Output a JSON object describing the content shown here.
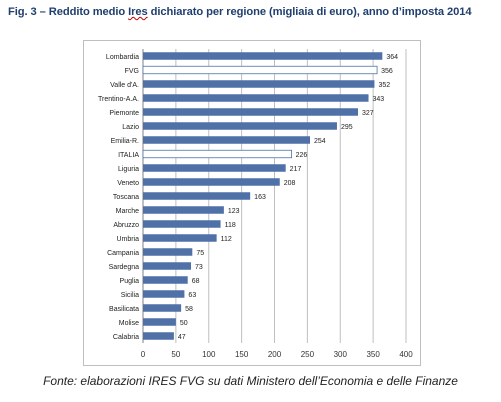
{
  "title": {
    "prefix": "Fig. 3 – Reddito medio ",
    "ires_word": "Ires",
    "suffix": " dichiarato per regione (migliaia di euro), anno d’imposta 2014"
  },
  "source_note": "Fonte: elaborazioni IRES FVG su dati Ministero dell’Economia e delle Finanze",
  "colors": {
    "bar_fill": "#4f71a8",
    "bar_highlight_fill": "#ffffff",
    "bar_highlight_stroke": "#4f71a8",
    "gridline": "#bfbfbf",
    "title": "#1f3f6e"
  },
  "chart_data": {
    "type": "bar",
    "orientation": "horizontal",
    "title": "Fig. 3 – Reddito medio Ires dichiarato per regione (migliaia di euro), anno d’imposta 2014",
    "xlabel": "",
    "ylabel": "",
    "xlim": [
      0,
      400
    ],
    "xticks": [
      0,
      50,
      100,
      150,
      200,
      250,
      300,
      350,
      400
    ],
    "grid": true,
    "legend": "none",
    "categories": [
      "Lombardia",
      "FVG",
      "Valle d'A.",
      "Trentino-A.A.",
      "Piemonte",
      "Lazio",
      "Emilia-R.",
      "ITALIA",
      "Liguria",
      "Veneto",
      "Toscana",
      "Marche",
      "Abruzzo",
      "Umbria",
      "Campania",
      "Sardegna",
      "Puglia",
      "Sicilia",
      "Basilicata",
      "Molise",
      "Calabria"
    ],
    "values": [
      364,
      356,
      352,
      343,
      327,
      295,
      254,
      226,
      217,
      208,
      163,
      123,
      118,
      112,
      75,
      73,
      68,
      63,
      58,
      50,
      47
    ],
    "highlighted": [
      "FVG",
      "ITALIA"
    ]
  }
}
